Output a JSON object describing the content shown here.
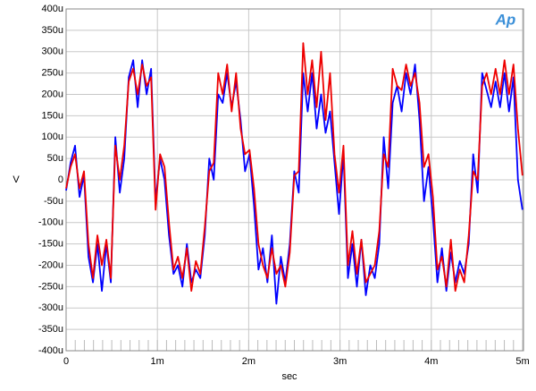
{
  "chart_data": {
    "type": "line",
    "logo": "Ap",
    "xlabel": "sec",
    "ylabel": "V",
    "xlim": [
      0,
      0.005
    ],
    "xticks": [
      0,
      {
        "value": 0.001,
        "label": "1m"
      },
      {
        "value": 0.002,
        "label": "2m"
      },
      {
        "value": 0.003,
        "label": "3m"
      },
      {
        "value": 0.004,
        "label": "4m"
      },
      {
        "value": 0.005,
        "label": "5m"
      }
    ],
    "ylim": [
      -0.0004,
      0.0004
    ],
    "yticks": [
      {
        "value": -0.0004,
        "label": "-400u"
      },
      {
        "value": -0.00035,
        "label": "-350u"
      },
      {
        "value": -0.0003,
        "label": "-300u"
      },
      {
        "value": -0.00025,
        "label": "-250u"
      },
      {
        "value": -0.0002,
        "label": "-200u"
      },
      {
        "value": -0.00015,
        "label": "-150u"
      },
      {
        "value": -0.0001,
        "label": "-100u"
      },
      {
        "value": -5e-05,
        "label": "-50u"
      },
      0,
      {
        "value": 5e-05,
        "label": "50u"
      },
      {
        "value": 0.0001,
        "label": "100u"
      },
      {
        "value": 0.00015,
        "label": "150u"
      },
      {
        "value": 0.0002,
        "label": "200u"
      },
      {
        "value": 0.00025,
        "label": "250u"
      },
      {
        "value": 0.0003,
        "label": "300u"
      },
      {
        "value": 0.00035,
        "label": "350u"
      },
      {
        "value": 0.0004,
        "label": "400u"
      }
    ],
    "grid": true,
    "x": [
      0,
      4.9e-05,
      9.8e-05,
      0.000147,
      0.000196,
      0.000245,
      0.000294,
      0.000343,
      0.000392,
      0.000441,
      0.00049,
      0.000539,
      0.000588,
      0.000637,
      0.000686,
      0.000735,
      0.000784,
      0.000833,
      0.000882,
      0.000931,
      0.00098,
      0.001029,
      0.001078,
      0.001127,
      0.001176,
      0.001225,
      0.001274,
      0.001323,
      0.001372,
      0.001421,
      0.00147,
      0.001519,
      0.001568,
      0.001617,
      0.001666,
      0.001715,
      0.001764,
      0.001813,
      0.001862,
      0.001911,
      0.00196,
      0.002009,
      0.002058,
      0.002107,
      0.002156,
      0.002205,
      0.002254,
      0.002303,
      0.002352,
      0.002401,
      0.00245,
      0.002499,
      0.002548,
      0.002597,
      0.002646,
      0.002695,
      0.002744,
      0.002793,
      0.002842,
      0.002891,
      0.00294,
      0.002989,
      0.003038,
      0.003087,
      0.003136,
      0.003185,
      0.003234,
      0.003283,
      0.003332,
      0.003381,
      0.00343,
      0.003479,
      0.003528,
      0.003577,
      0.003626,
      0.003675,
      0.003724,
      0.003773,
      0.003822,
      0.003871,
      0.00392,
      0.003969,
      0.004018,
      0.004067,
      0.004116,
      0.004165,
      0.004214,
      0.004263,
      0.004312,
      0.004361,
      0.00441,
      0.004459,
      0.004508,
      0.004557,
      0.004606,
      0.004655,
      0.004704,
      0.004753,
      0.004802,
      0.004851,
      0.0049,
      0.004949,
      0.004998
    ],
    "series": [
      {
        "color": "#0000ff",
        "values": [
          -2.5e-05,
          4e-05,
          8e-05,
          -4e-05,
          1e-05,
          -0.00018,
          -0.00024,
          -0.00015,
          -0.00026,
          -0.00015,
          -0.00024,
          0.0001,
          -3e-05,
          5e-05,
          0.00024,
          0.00028,
          0.00017,
          0.00028,
          0.0002,
          0.00026,
          -5e-05,
          5e-05,
          0,
          -0.00013,
          -0.00022,
          -0.0002,
          -0.00025,
          -0.00015,
          -0.00024,
          -0.00021,
          -0.00023,
          -0.00013,
          5e-05,
          0,
          0.0002,
          0.00018,
          0.00025,
          0.00017,
          0.00023,
          0.00014,
          2e-05,
          6e-05,
          -6e-05,
          -0.00021,
          -0.00016,
          -0.00024,
          -0.00013,
          -0.00029,
          -0.00018,
          -0.00024,
          -0.00015,
          2e-05,
          -3e-05,
          0.00025,
          0.00016,
          0.00025,
          0.00012,
          0.0002,
          0.00011,
          0.00016,
          4e-05,
          -8e-05,
          6e-05,
          -0.00023,
          -0.00015,
          -0.00025,
          -0.00014,
          -0.00027,
          -0.0002,
          -0.00023,
          -0.00015,
          0.0001,
          -2e-05,
          0.00018,
          0.00022,
          0.00016,
          0.00025,
          0.0002,
          0.00027,
          0.00014,
          -5e-05,
          3e-05,
          -9e-05,
          -0.00024,
          -0.00016,
          -0.00026,
          -0.00017,
          -0.00024,
          -0.00019,
          -0.00022,
          -0.00015,
          6e-05,
          -3e-05,
          0.00025,
          0.00021,
          0.00017,
          0.00023,
          0.00017,
          0.00025,
          0.00016,
          0.00024,
          0,
          -7e-05
        ]
      },
      {
        "color": "#ee0000",
        "values": [
          -2e-05,
          3e-05,
          6e-05,
          -2e-05,
          2e-05,
          -0.00015,
          -0.00023,
          -0.00013,
          -0.0002,
          -0.00014,
          -0.00023,
          8e-05,
          0,
          8e-05,
          0.00023,
          0.00026,
          0.0002,
          0.00027,
          0.00022,
          0.00024,
          -7e-05,
          6e-05,
          3e-05,
          -0.0001,
          -0.00021,
          -0.00018,
          -0.00023,
          -0.00016,
          -0.00026,
          -0.00019,
          -0.00022,
          -0.00011,
          2e-05,
          4e-05,
          0.00025,
          0.0002,
          0.00027,
          0.00016,
          0.00025,
          0.00012,
          6e-05,
          7e-05,
          -2e-05,
          -0.00015,
          -0.0002,
          -0.00023,
          -0.00016,
          -0.00022,
          -0.0002,
          -0.00025,
          -0.00017,
          1e-05,
          2e-05,
          0.00032,
          0.0002,
          0.00028,
          0.00017,
          0.0003,
          0.00014,
          0.00025,
          6e-05,
          -3e-05,
          8e-05,
          -0.0002,
          -0.00012,
          -0.00022,
          -0.00014,
          -0.00024,
          -0.00022,
          -0.0002,
          -0.00012,
          6e-05,
          3e-05,
          0.00026,
          0.00022,
          0.00021,
          0.00027,
          0.00022,
          0.00025,
          0.00018,
          3e-05,
          6e-05,
          -4e-05,
          -0.00021,
          -0.00018,
          -0.00025,
          -0.00014,
          -0.00026,
          -0.00021,
          -0.00024,
          -0.00013,
          2e-05,
          0,
          0.00022,
          0.00025,
          0.0002,
          0.00026,
          0.0002,
          0.00028,
          0.0002,
          0.00027,
          0.00012,
          1e-05
        ]
      }
    ]
  }
}
